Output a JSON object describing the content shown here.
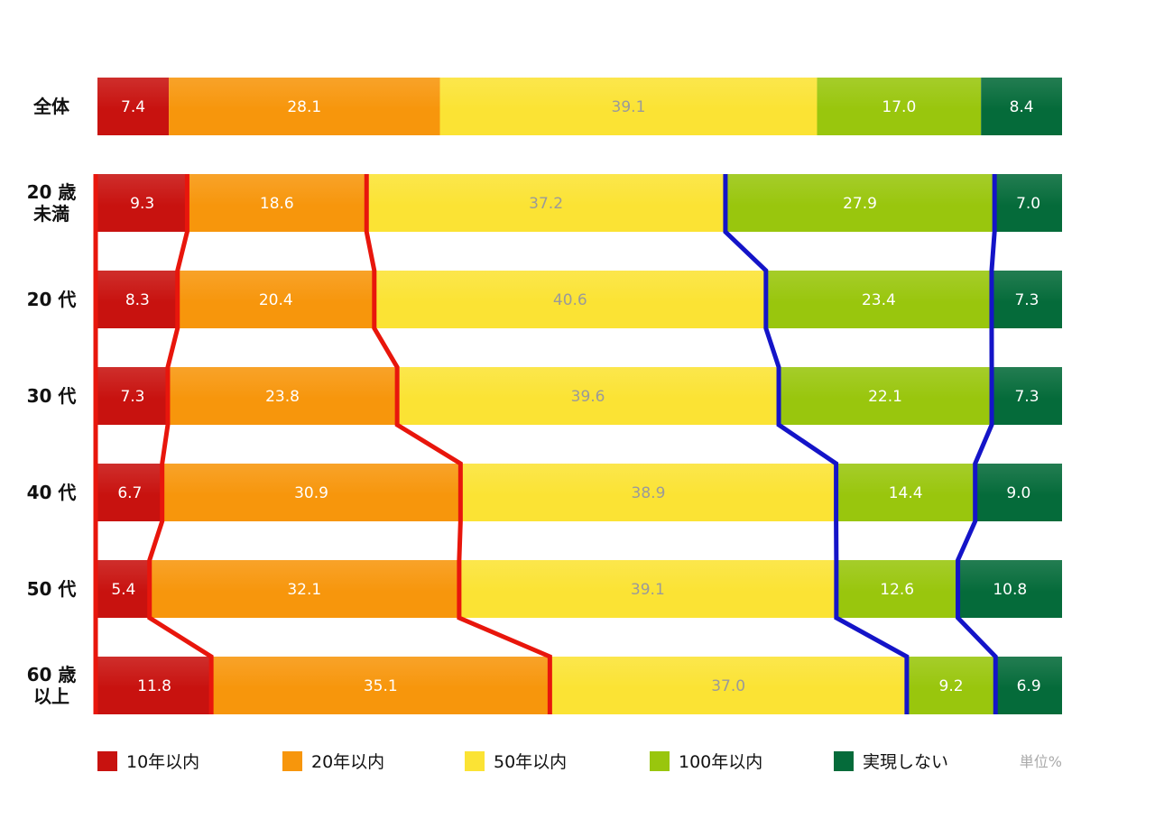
{
  "chart_data": {
    "type": "bar",
    "orientation": "horizontal",
    "stacked": true,
    "normalized_to": 100,
    "unit_label": "単位%",
    "categories": [
      {
        "lines": [
          "全体"
        ]
      },
      {
        "lines": [
          "20 歳",
          "未満"
        ]
      },
      {
        "lines": [
          "20 代"
        ]
      },
      {
        "lines": [
          "30 代"
        ]
      },
      {
        "lines": [
          "40 代"
        ]
      },
      {
        "lines": [
          "50 代"
        ]
      },
      {
        "lines": [
          "60 歳",
          "以上"
        ]
      }
    ],
    "series": [
      {
        "name": "10年以内",
        "color": "#c8120f",
        "label_color": "#ffffff",
        "values": [
          7.4,
          9.3,
          8.3,
          7.3,
          6.7,
          5.4,
          11.8
        ],
        "labels": [
          "7.4",
          "9.3",
          "8.3",
          "7.3",
          "6.7",
          "5.4",
          "11.8"
        ]
      },
      {
        "name": "20年以内",
        "color": "#f7960c",
        "label_color": "#ffffff",
        "values": [
          28.1,
          18.6,
          20.4,
          23.8,
          30.9,
          32.1,
          35.1
        ],
        "labels": [
          "28.1",
          "18.6",
          "20.4",
          "23.8",
          "30.9",
          "32.1",
          "35.1"
        ]
      },
      {
        "name": "50年以内",
        "color": "#fbe334",
        "label_color": "#9a9a9a",
        "values": [
          39.1,
          37.2,
          40.6,
          39.6,
          38.9,
          39.1,
          37.0
        ],
        "labels": [
          "39.1",
          "37.2",
          "40.6",
          "39.6",
          "38.9",
          "39.1",
          "37.0"
        ]
      },
      {
        "name": "100年以内",
        "color": "#99c60d",
        "label_color": "#ffffff",
        "values": [
          17.0,
          27.9,
          23.4,
          22.1,
          14.4,
          12.6,
          9.2
        ],
        "labels": [
          "17.0",
          "27.9",
          "23.4",
          "22.1",
          "14.4",
          "12.6",
          "9.2"
        ]
      },
      {
        "name": "実現しない",
        "color": "#056b3a",
        "label_color": "#ffffff",
        "values": [
          8.4,
          7.0,
          7.3,
          7.3,
          9.0,
          10.8,
          6.9
        ],
        "labels": [
          "8.4",
          "7.0",
          "7.3",
          "7.3",
          "9.0",
          "10.8",
          "6.9"
        ]
      }
    ],
    "overlay_lines": [
      {
        "color": "#e8160c",
        "after_series": 0,
        "rows": [
          1,
          2,
          3,
          4,
          5,
          6
        ],
        "description": "boundary lines"
      },
      {
        "color": "#e8160c",
        "after_series": 1,
        "rows": [
          1,
          2,
          3,
          4,
          5,
          6
        ]
      },
      {
        "color": "#1414c8",
        "after_series": 2,
        "rows": [
          1,
          2,
          3,
          4,
          5,
          6
        ]
      },
      {
        "color": "#1414c8",
        "after_series": 3,
        "rows": [
          1,
          2,
          3,
          4,
          5,
          6
        ]
      }
    ],
    "legend_position": "bottom",
    "grid": false,
    "title": "",
    "xlabel": "",
    "ylabel": ""
  }
}
